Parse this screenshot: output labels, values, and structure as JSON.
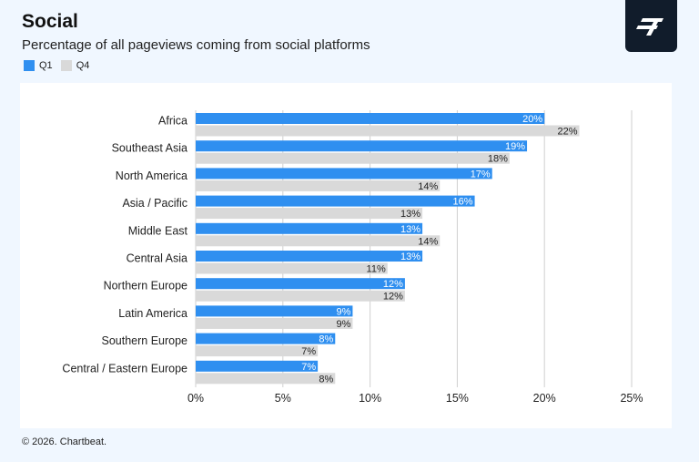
{
  "header": {
    "title": "Social",
    "subtitle": "Percentage of all pageviews coming from social platforms"
  },
  "logo": {
    "icon": "chartbeat-logo-icon"
  },
  "footer": {
    "copyright": "© 2026. Chartbeat."
  },
  "colors": {
    "q1": "#2f8ff0",
    "q4": "#d9d9d9",
    "grid": "#cfcfcf",
    "panel": "#ffffff",
    "background": "#f0f7ff"
  },
  "chart_data": {
    "type": "bar",
    "orientation": "horizontal",
    "title": "Social",
    "subtitle": "Percentage of all pageviews coming from social platforms",
    "categories": [
      "Africa",
      "Southeast Asia",
      "North America",
      "Asia / Pacific",
      "Middle East",
      "Central Asia",
      "Northern Europe",
      "Latin America",
      "Southern Europe",
      "Central / Eastern Europe"
    ],
    "series": [
      {
        "name": "Q1",
        "values": [
          20,
          19,
          17,
          16,
          13,
          13,
          12,
          9,
          8,
          7
        ],
        "labels": [
          "20%",
          "19%",
          "17%",
          "16%",
          "13%",
          "13%",
          "12%",
          "9%",
          "8%",
          "7%"
        ]
      },
      {
        "name": "Q4",
        "values": [
          22,
          18,
          14,
          13,
          14,
          11,
          12,
          9,
          7,
          8
        ],
        "labels": [
          "22%",
          "18%",
          "14%",
          "13%",
          "14%",
          "11%",
          "12%",
          "9%",
          "7%",
          "8%"
        ]
      }
    ],
    "xlim": [
      0,
      25
    ],
    "x_ticks": [
      0,
      5,
      10,
      15,
      20,
      25
    ],
    "x_tick_labels": [
      "0%",
      "5%",
      "10%",
      "15%",
      "20%",
      "25%"
    ],
    "grid": true,
    "legend": "top-left"
  }
}
